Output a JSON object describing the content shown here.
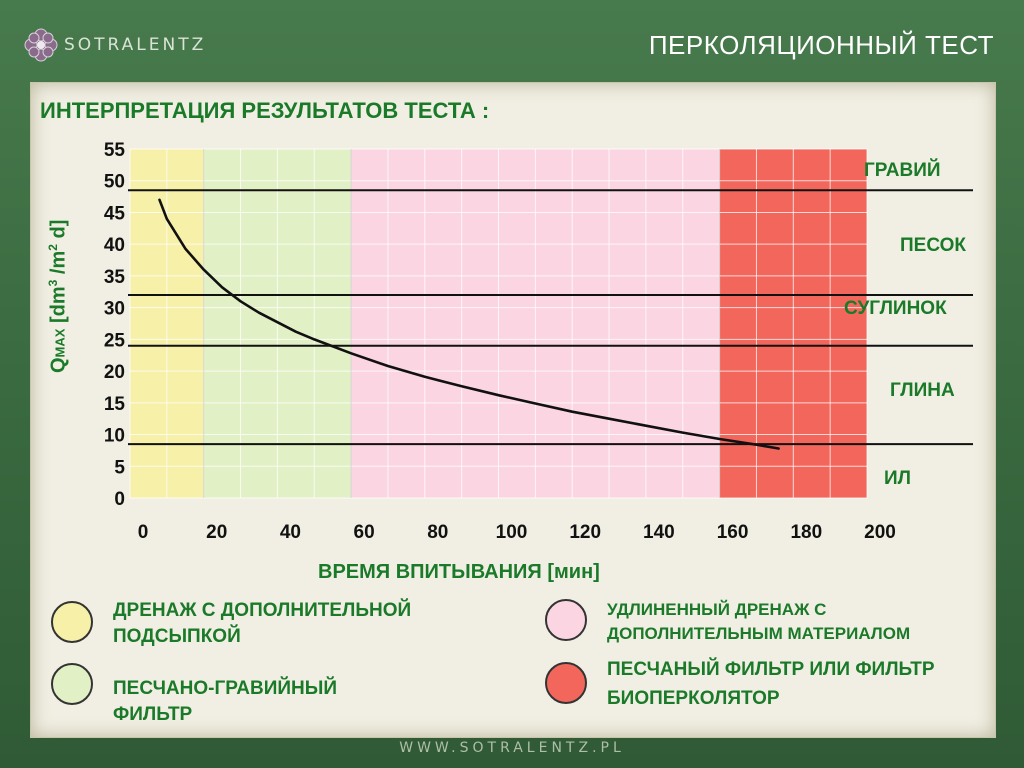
{
  "header": {
    "logo_text": "SOTRALENTZ",
    "title": "ПЕРКОЛЯЦИОННЫЙ ТЕСТ"
  },
  "main": {
    "subtitle": "ИНТЕРПРЕТАЦИЯ РЕЗУЛЬТАТОВ ТЕСТА :"
  },
  "chart_data": {
    "type": "line",
    "ylabel_main": "Q",
    "ylabel_sub": "MAX",
    "ylabel_unit_pre": " [dm",
    "ylabel_sup1": "3",
    "ylabel_mid": " /m",
    "ylabel_sup2": "2",
    "ylabel_end": " d]",
    "xlabel": "ВРЕМЯ ВПИТЫВАНИЯ [мин]",
    "xlim": [
      0,
      200
    ],
    "ylim": [
      0,
      55
    ],
    "x_ticks": [
      "0",
      "20",
      "40",
      "60",
      "80",
      "100",
      "120",
      "140",
      "160",
      "180",
      "200"
    ],
    "y_ticks": [
      "55",
      "50",
      "45",
      "40",
      "35",
      "30",
      "25",
      "20",
      "15",
      "10",
      "5",
      "0"
    ],
    "zones": [
      {
        "from": 0,
        "to": 20,
        "color": "#f7f0a8"
      },
      {
        "from": 20,
        "to": 60,
        "color": "#e2f0c6"
      },
      {
        "from": 60,
        "to": 160,
        "color": "#fbd6e2"
      },
      {
        "from": 160,
        "to": 200,
        "color": "#f2665c"
      }
    ],
    "thresholds": [
      48.5,
      32,
      24,
      8.5
    ],
    "soil_labels": [
      "ГРАВИЙ",
      "ПЕСОК",
      "СУГЛИНОК",
      "ГЛИНА",
      "ИЛ"
    ],
    "series": [
      {
        "x": [
          8,
          10,
          15,
          20,
          25,
          30,
          35,
          40,
          45,
          50,
          60,
          70,
          80,
          90,
          100,
          110,
          120,
          130,
          140,
          150,
          160,
          170,
          176
        ],
        "y": [
          47,
          44,
          39.3,
          36,
          33.2,
          31,
          29.2,
          27.7,
          26.2,
          25,
          22.8,
          20.8,
          19.1,
          17.6,
          16.2,
          14.9,
          13.6,
          12.5,
          11.4,
          10.3,
          9.3,
          8.4,
          7.8
        ]
      }
    ]
  },
  "legend": [
    {
      "color": "#f7f0a8",
      "text": "ДРЕНАЖ С ДОПОЛНИТЕЛЬНОЙ ПОДСЫПКОЙ"
    },
    {
      "color": "#e2f0c6",
      "text": "ПЕСЧАНО-ГРАВИЙНЫЙ ФИЛЬТР"
    },
    {
      "color": "#fbd6e2",
      "text": "УДЛИНЕННЫЙ ДРЕНАЖ С ДОПОЛНИТЕЛЬНЫМ МАТЕРИАЛОМ"
    },
    {
      "color": "#f2665c",
      "text": "ПЕСЧАНЫЙ ФИЛЬТР ИЛИ ФИЛЬТР БИОПЕРКОЛЯТОР"
    }
  ],
  "footer": {
    "url": "WWW.SOTRALENTZ.PL"
  },
  "icons": {
    "logo": "flower-logo-icon"
  }
}
